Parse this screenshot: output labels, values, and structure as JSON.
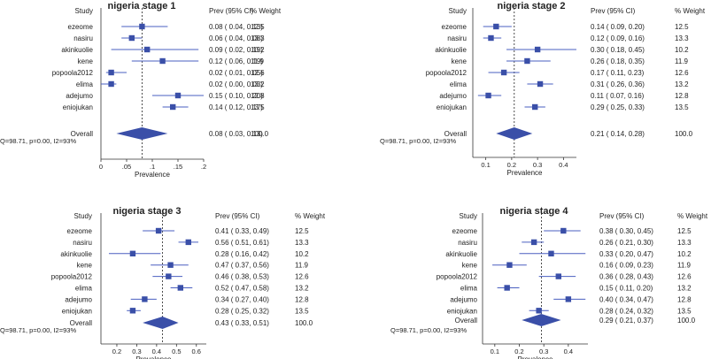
{
  "columns": {
    "study": "Study",
    "prev": "Prev (95% CI)",
    "weight": "% Weight"
  },
  "xlabel": "Prevalence",
  "overall_label": "Overall",
  "colors": {
    "marker": "#3a4fa8",
    "ci": "#4a5fc0",
    "text": "#222222"
  },
  "chart_data": [
    {
      "type": "forest",
      "title": "nigeria stage 1",
      "stats": "Q=98.71, p=0.00, I2=93%",
      "xlim": [
        0,
        0.2
      ],
      "ticks": [
        {
          "v": 0,
          "label": "0"
        },
        {
          "v": 0.05,
          "label": ".05"
        },
        {
          "v": 0.1,
          "label": ".1"
        },
        {
          "v": 0.15,
          "label": ".15"
        },
        {
          "v": 0.2,
          "label": ".2"
        }
      ],
      "studies": [
        {
          "name": "ezeome",
          "est": 0.08,
          "lo": 0.04,
          "hi": 0.13,
          "ci_text": "0.08 ( 0.04, 0.13)",
          "weight": "12.5"
        },
        {
          "name": "nasiru",
          "est": 0.06,
          "lo": 0.04,
          "hi": 0.08,
          "ci_text": "0.06 ( 0.04, 0.08)",
          "weight": "13.3"
        },
        {
          "name": "akinkuolie",
          "est": 0.09,
          "lo": 0.02,
          "hi": 0.19,
          "ci_text": "0.09 ( 0.02, 0.19)",
          "weight": "10.2"
        },
        {
          "name": "kene",
          "est": 0.12,
          "lo": 0.06,
          "hi": 0.19,
          "ci_text": "0.12 ( 0.06, 0.19)",
          "weight": "11.9"
        },
        {
          "name": "popoola2012",
          "est": 0.02,
          "lo": 0.01,
          "hi": 0.05,
          "ci_text": "0.02 ( 0.01, 0.05)",
          "weight": "12.6"
        },
        {
          "name": "elima",
          "est": 0.02,
          "lo": 0.0,
          "hi": 0.03,
          "ci_text": "0.02 ( 0.00, 0.03)",
          "weight": "13.2"
        },
        {
          "name": "adejumo",
          "est": 0.15,
          "lo": 0.1,
          "hi": 0.2,
          "ci_text": "0.15 ( 0.10, 0.20)",
          "weight": "12.8"
        },
        {
          "name": "eniojukan",
          "est": 0.14,
          "lo": 0.12,
          "hi": 0.17,
          "ci_text": "0.14 ( 0.12, 0.17)",
          "weight": "13.5"
        }
      ],
      "overall": {
        "est": 0.08,
        "lo": 0.03,
        "hi": 0.13,
        "ci_text": "0.08 ( 0.03, 0.13)",
        "weight": "100.0"
      }
    },
    {
      "type": "forest",
      "title": "nigeria stage 2",
      "stats": "Q=98.71, p=0.00, I2=93%",
      "xlim": [
        0.05,
        0.45
      ],
      "ticks": [
        {
          "v": 0.1,
          "label": "0.1"
        },
        {
          "v": 0.2,
          "label": "0.2"
        },
        {
          "v": 0.3,
          "label": "0.3"
        },
        {
          "v": 0.4,
          "label": "0.4"
        }
      ],
      "studies": [
        {
          "name": "ezeome",
          "est": 0.14,
          "lo": 0.09,
          "hi": 0.2,
          "ci_text": "0.14 ( 0.09, 0.20)",
          "weight": "12.5"
        },
        {
          "name": "nasiru",
          "est": 0.12,
          "lo": 0.09,
          "hi": 0.16,
          "ci_text": "0.12 ( 0.09, 0.16)",
          "weight": "13.3"
        },
        {
          "name": "akinkuolie",
          "est": 0.3,
          "lo": 0.18,
          "hi": 0.45,
          "ci_text": "0.30 ( 0.18, 0.45)",
          "weight": "10.2"
        },
        {
          "name": "kene",
          "est": 0.26,
          "lo": 0.18,
          "hi": 0.35,
          "ci_text": "0.26 ( 0.18, 0.35)",
          "weight": "11.9"
        },
        {
          "name": "popoola2012",
          "est": 0.17,
          "lo": 0.11,
          "hi": 0.23,
          "ci_text": "0.17 ( 0.11, 0.23)",
          "weight": "12.6"
        },
        {
          "name": "elima",
          "est": 0.31,
          "lo": 0.26,
          "hi": 0.36,
          "ci_text": "0.31 ( 0.26, 0.36)",
          "weight": "13.2"
        },
        {
          "name": "adejumo",
          "est": 0.11,
          "lo": 0.07,
          "hi": 0.16,
          "ci_text": "0.11 ( 0.07, 0.16)",
          "weight": "12.8"
        },
        {
          "name": "eniojukan",
          "est": 0.29,
          "lo": 0.25,
          "hi": 0.33,
          "ci_text": "0.29 ( 0.25, 0.33)",
          "weight": "13.5"
        }
      ],
      "overall": {
        "est": 0.21,
        "lo": 0.14,
        "hi": 0.28,
        "ci_text": "0.21 ( 0.14, 0.28)",
        "weight": "100.0"
      }
    },
    {
      "type": "forest",
      "title": "nigeria stage 3",
      "stats": "Q=98.71, p=0.00, I2=93%",
      "xlim": [
        0.12,
        0.65
      ],
      "ticks": [
        {
          "v": 0.2,
          "label": "0.2"
        },
        {
          "v": 0.3,
          "label": "0.3"
        },
        {
          "v": 0.4,
          "label": "0.4"
        },
        {
          "v": 0.5,
          "label": "0.5"
        },
        {
          "v": 0.6,
          "label": "0.6"
        }
      ],
      "studies": [
        {
          "name": "ezeome",
          "est": 0.41,
          "lo": 0.33,
          "hi": 0.49,
          "ci_text": "0.41 ( 0.33, 0.49)",
          "weight": "12.5"
        },
        {
          "name": "nasiru",
          "est": 0.56,
          "lo": 0.51,
          "hi": 0.61,
          "ci_text": "0.56 ( 0.51, 0.61)",
          "weight": "13.3"
        },
        {
          "name": "akinkuolie",
          "est": 0.28,
          "lo": 0.16,
          "hi": 0.42,
          "ci_text": "0.28 ( 0.16, 0.42)",
          "weight": "10.2"
        },
        {
          "name": "kene",
          "est": 0.47,
          "lo": 0.37,
          "hi": 0.56,
          "ci_text": "0.47 ( 0.37, 0.56)",
          "weight": "11.9"
        },
        {
          "name": "popoola2012",
          "est": 0.46,
          "lo": 0.38,
          "hi": 0.53,
          "ci_text": "0.46 ( 0.38, 0.53)",
          "weight": "12.6"
        },
        {
          "name": "elima",
          "est": 0.52,
          "lo": 0.47,
          "hi": 0.58,
          "ci_text": "0.52 ( 0.47, 0.58)",
          "weight": "13.2"
        },
        {
          "name": "adejumo",
          "est": 0.34,
          "lo": 0.27,
          "hi": 0.4,
          "ci_text": "0.34 ( 0.27, 0.40)",
          "weight": "12.8"
        },
        {
          "name": "eniojukan",
          "est": 0.28,
          "lo": 0.25,
          "hi": 0.32,
          "ci_text": "0.28 ( 0.25, 0.32)",
          "weight": "13.5"
        }
      ],
      "overall": {
        "est": 0.43,
        "lo": 0.33,
        "hi": 0.51,
        "ci_text": "0.43 ( 0.33, 0.51)",
        "weight": "100.0"
      }
    },
    {
      "type": "forest",
      "title": "nigeria stage 4",
      "stats": "Q=98.71, p=0.00, I2=93%",
      "xlim": [
        0.05,
        0.48
      ],
      "ticks": [
        {
          "v": 0.1,
          "label": "0.1"
        },
        {
          "v": 0.2,
          "label": "0.2"
        },
        {
          "v": 0.3,
          "label": "0.3"
        },
        {
          "v": 0.4,
          "label": "0.4"
        }
      ],
      "studies": [
        {
          "name": "ezeome",
          "est": 0.38,
          "lo": 0.3,
          "hi": 0.45,
          "ci_text": "0.38 ( 0.30, 0.45)",
          "weight": "12.5"
        },
        {
          "name": "nasiru",
          "est": 0.26,
          "lo": 0.21,
          "hi": 0.3,
          "ci_text": "0.26 ( 0.21, 0.30)",
          "weight": "13.3"
        },
        {
          "name": "akinkuolie",
          "est": 0.33,
          "lo": 0.2,
          "hi": 0.47,
          "ci_text": "0.33 ( 0.20, 0.47)",
          "weight": "10.2"
        },
        {
          "name": "kene",
          "est": 0.16,
          "lo": 0.09,
          "hi": 0.23,
          "ci_text": "0.16 ( 0.09, 0.23)",
          "weight": "11.9"
        },
        {
          "name": "popoola2012",
          "est": 0.36,
          "lo": 0.28,
          "hi": 0.43,
          "ci_text": "0.36 ( 0.28, 0.43)",
          "weight": "12.6"
        },
        {
          "name": "elima",
          "est": 0.15,
          "lo": 0.11,
          "hi": 0.2,
          "ci_text": "0.15 ( 0.11, 0.20)",
          "weight": "13.2"
        },
        {
          "name": "adejumo",
          "est": 0.4,
          "lo": 0.34,
          "hi": 0.47,
          "ci_text": "0.40 ( 0.34, 0.47)",
          "weight": "12.8"
        },
        {
          "name": "eniojukan",
          "est": 0.28,
          "lo": 0.24,
          "hi": 0.32,
          "ci_text": "0.28 ( 0.24, 0.32)",
          "weight": "13.5"
        }
      ],
      "overall": {
        "est": 0.29,
        "lo": 0.21,
        "hi": 0.37,
        "ci_text": "0.29 ( 0.21, 0.37)",
        "weight": "100.0"
      }
    }
  ]
}
